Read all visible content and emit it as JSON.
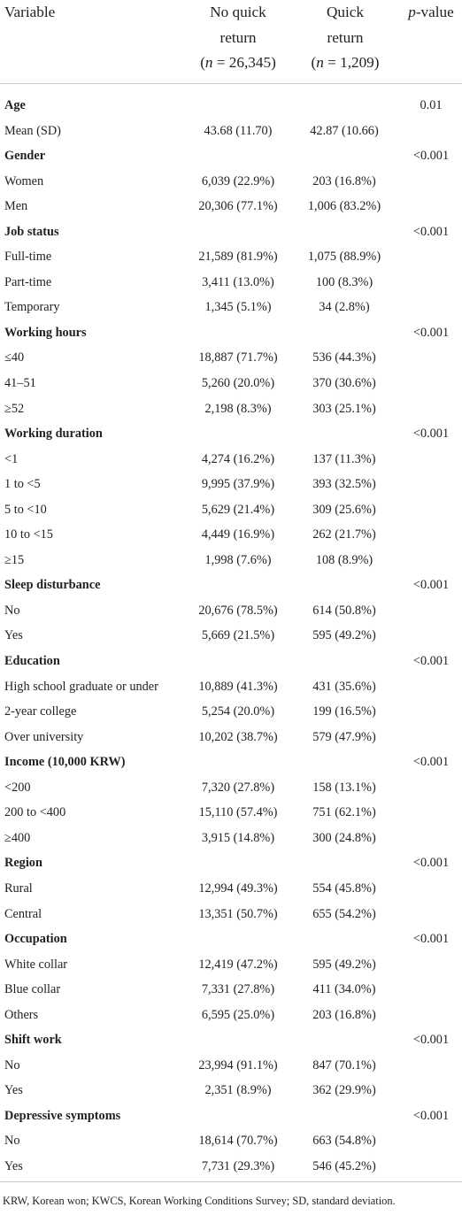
{
  "header": {
    "variable": "Variable",
    "no_quick_line1": "No quick",
    "no_quick_line2": "return",
    "no_quick_n_prefix": "(",
    "no_quick_n_var": "n",
    "no_quick_n_rest": " = 26,345)",
    "quick_line1": "Quick",
    "quick_line2": "return",
    "quick_n_prefix": "(",
    "quick_n_var": "n",
    "quick_n_rest": " = 1,209)",
    "p_italic": "p",
    "p_rest": "-value"
  },
  "rows": [
    {
      "label": "Age",
      "no_quick": "",
      "quick": "",
      "p": "0.01",
      "is_header": true
    },
    {
      "label": "Mean (SD)",
      "no_quick": "43.68 (11.70)",
      "quick": "42.87 (10.66)",
      "p": "",
      "is_header": false
    },
    {
      "label": "Gender",
      "no_quick": "",
      "quick": "",
      "p": "<0.001",
      "is_header": true
    },
    {
      "label": "Women",
      "no_quick": "6,039 (22.9%)",
      "quick": "203 (16.8%)",
      "p": "",
      "is_header": false
    },
    {
      "label": "Men",
      "no_quick": "20,306 (77.1%)",
      "quick": "1,006 (83.2%)",
      "p": "",
      "is_header": false
    },
    {
      "label": "Job status",
      "no_quick": "",
      "quick": "",
      "p": "<0.001",
      "is_header": true
    },
    {
      "label": "Full-time",
      "no_quick": "21,589 (81.9%)",
      "quick": "1,075 (88.9%)",
      "p": "",
      "is_header": false
    },
    {
      "label": "Part-time",
      "no_quick": "3,411 (13.0%)",
      "quick": "100 (8.3%)",
      "p": "",
      "is_header": false
    },
    {
      "label": "Temporary",
      "no_quick": "1,345 (5.1%)",
      "quick": "34 (2.8%)",
      "p": "",
      "is_header": false
    },
    {
      "label": "Working hours",
      "no_quick": "",
      "quick": "",
      "p": "<0.001",
      "is_header": true
    },
    {
      "label": "≤40",
      "no_quick": "18,887 (71.7%)",
      "quick": "536 (44.3%)",
      "p": "",
      "is_header": false
    },
    {
      "label": "41–51",
      "no_quick": "5,260 (20.0%)",
      "quick": "370 (30.6%)",
      "p": "",
      "is_header": false
    },
    {
      "label": "≥52",
      "no_quick": "2,198 (8.3%)",
      "quick": "303 (25.1%)",
      "p": "",
      "is_header": false
    },
    {
      "label": "Working duration",
      "no_quick": "",
      "quick": "",
      "p": "<0.001",
      "is_header": true
    },
    {
      "label": "<1",
      "no_quick": "4,274 (16.2%)",
      "quick": "137 (11.3%)",
      "p": "",
      "is_header": false
    },
    {
      "label": "1 to <5",
      "no_quick": "9,995 (37.9%)",
      "quick": "393 (32.5%)",
      "p": "",
      "is_header": false
    },
    {
      "label": "5 to <10",
      "no_quick": "5,629 (21.4%)",
      "quick": "309 (25.6%)",
      "p": "",
      "is_header": false
    },
    {
      "label": "10 to <15",
      "no_quick": "4,449 (16.9%)",
      "quick": "262 (21.7%)",
      "p": "",
      "is_header": false
    },
    {
      "label": "≥15",
      "no_quick": "1,998 (7.6%)",
      "quick": "108 (8.9%)",
      "p": "",
      "is_header": false
    },
    {
      "label": "Sleep disturbance",
      "no_quick": "",
      "quick": "",
      "p": "<0.001",
      "is_header": true
    },
    {
      "label": "No",
      "no_quick": "20,676 (78.5%)",
      "quick": "614 (50.8%)",
      "p": "",
      "is_header": false
    },
    {
      "label": "Yes",
      "no_quick": "5,669 (21.5%)",
      "quick": "595 (49.2%)",
      "p": "",
      "is_header": false
    },
    {
      "label": "Education",
      "no_quick": "",
      "quick": "",
      "p": "<0.001",
      "is_header": true
    },
    {
      "label": "High school graduate or under",
      "no_quick": "10,889 (41.3%)",
      "quick": "431 (35.6%)",
      "p": "",
      "is_header": false
    },
    {
      "label": "2-year college",
      "no_quick": "5,254 (20.0%)",
      "quick": "199 (16.5%)",
      "p": "",
      "is_header": false
    },
    {
      "label": "Over university",
      "no_quick": "10,202 (38.7%)",
      "quick": "579 (47.9%)",
      "p": "",
      "is_header": false
    },
    {
      "label": "Income (10,000 KRW)",
      "no_quick": "",
      "quick": "",
      "p": "<0.001",
      "is_header": true
    },
    {
      "label": "<200",
      "no_quick": "7,320 (27.8%)",
      "quick": "158 (13.1%)",
      "p": "",
      "is_header": false
    },
    {
      "label": "200 to <400",
      "no_quick": "15,110 (57.4%)",
      "quick": "751 (62.1%)",
      "p": "",
      "is_header": false
    },
    {
      "label": "≥400",
      "no_quick": "3,915 (14.8%)",
      "quick": "300 (24.8%)",
      "p": "",
      "is_header": false
    },
    {
      "label": "Region",
      "no_quick": "",
      "quick": "",
      "p": "<0.001",
      "is_header": true
    },
    {
      "label": "Rural",
      "no_quick": "12,994 (49.3%)",
      "quick": "554 (45.8%)",
      "p": "",
      "is_header": false
    },
    {
      "label": "Central",
      "no_quick": "13,351 (50.7%)",
      "quick": "655 (54.2%)",
      "p": "",
      "is_header": false
    },
    {
      "label": "Occupation",
      "no_quick": "",
      "quick": "",
      "p": "<0.001",
      "is_header": true
    },
    {
      "label": "White collar",
      "no_quick": "12,419 (47.2%)",
      "quick": "595 (49.2%)",
      "p": "",
      "is_header": false
    },
    {
      "label": "Blue collar",
      "no_quick": "7,331 (27.8%)",
      "quick": "411 (34.0%)",
      "p": "",
      "is_header": false
    },
    {
      "label": "Others",
      "no_quick": "6,595 (25.0%)",
      "quick": "203 (16.8%)",
      "p": "",
      "is_header": false
    },
    {
      "label": "Shift work",
      "no_quick": "",
      "quick": "",
      "p": "<0.001",
      "is_header": true
    },
    {
      "label": "No",
      "no_quick": "23,994 (91.1%)",
      "quick": "847 (70.1%)",
      "p": "",
      "is_header": false
    },
    {
      "label": "Yes",
      "no_quick": "2,351 (8.9%)",
      "quick": "362 (29.9%)",
      "p": "",
      "is_header": false
    },
    {
      "label": "Depressive symptoms",
      "no_quick": "",
      "quick": "",
      "p": "<0.001",
      "is_header": true
    },
    {
      "label": "No",
      "no_quick": "18,614 (70.7%)",
      "quick": "663 (54.8%)",
      "p": "",
      "is_header": false
    },
    {
      "label": "Yes",
      "no_quick": "7,731 (29.3%)",
      "quick": "546 (45.2%)",
      "p": "",
      "is_header": false
    }
  ],
  "footnote": "KRW, Korean won; KWCS, Korean Working Conditions Survey; SD, standard deviation."
}
